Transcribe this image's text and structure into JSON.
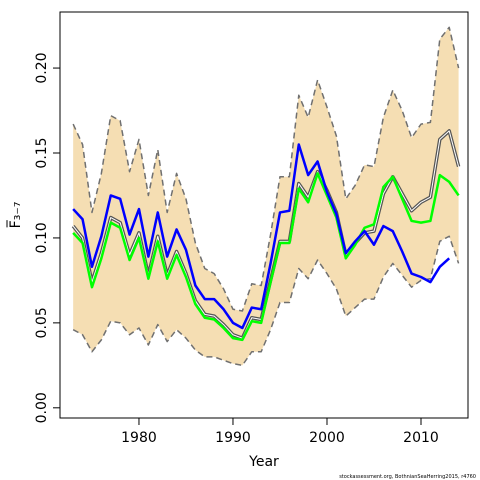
{
  "chart_data": {
    "type": "line",
    "xlabel": "Year",
    "ylabel": "F̅₃₋₇",
    "xlim": [
      1971.6,
      2015.0
    ],
    "ylim": [
      -0.006,
      0.233
    ],
    "x_ticks": [
      1980,
      1990,
      2000,
      2010
    ],
    "x_tick_labels": [
      "1980",
      "1990",
      "2000",
      "2010"
    ],
    "y_ticks": [
      0.0,
      0.05,
      0.1,
      0.15,
      0.2
    ],
    "y_tick_labels": [
      "0.00",
      "0.05",
      "0.10",
      "0.15",
      "0.20"
    ],
    "grid": false,
    "footnote": "stockassessment.org, BothnianSeaHerring2015, r4760",
    "x": [
      1973,
      1974,
      1975,
      1976,
      1977,
      1978,
      1979,
      1980,
      1981,
      1982,
      1983,
      1984,
      1985,
      1986,
      1987,
      1988,
      1989,
      1990,
      1991,
      1992,
      1993,
      1994,
      1995,
      1996,
      1997,
      1998,
      1999,
      2000,
      2001,
      2002,
      2003,
      2004,
      2005,
      2006,
      2007,
      2008,
      2009,
      2010,
      2011,
      2012,
      2013,
      2014
    ],
    "series": [
      {
        "role": "confidence-upper",
        "color": "#707070",
        "values": [
          0.167,
          0.155,
          0.115,
          0.138,
          0.172,
          0.169,
          0.139,
          0.158,
          0.125,
          0.152,
          0.115,
          0.138,
          0.123,
          0.097,
          0.082,
          0.079,
          0.07,
          0.058,
          0.057,
          0.073,
          0.072,
          0.102,
          0.136,
          0.136,
          0.184,
          0.171,
          0.193,
          0.177,
          0.16,
          0.123,
          0.131,
          0.143,
          0.142,
          0.171,
          0.187,
          0.175,
          0.159,
          0.167,
          0.168,
          0.217,
          0.224,
          0.2
        ]
      },
      {
        "role": "confidence-lower",
        "color": "#707070",
        "values": [
          0.046,
          0.043,
          0.033,
          0.04,
          0.051,
          0.05,
          0.043,
          0.047,
          0.037,
          0.049,
          0.039,
          0.046,
          0.041,
          0.034,
          0.03,
          0.03,
          0.028,
          0.026,
          0.025,
          0.033,
          0.033,
          0.046,
          0.062,
          0.062,
          0.082,
          0.076,
          0.087,
          0.079,
          0.07,
          0.054,
          0.059,
          0.064,
          0.064,
          0.077,
          0.085,
          0.078,
          0.071,
          0.075,
          0.076,
          0.098,
          0.101,
          0.085
        ]
      },
      {
        "role": "estimate",
        "color": "#555555",
        "values": [
          0.107,
          0.1,
          0.074,
          0.091,
          0.112,
          0.109,
          0.09,
          0.103,
          0.078,
          0.101,
          0.078,
          0.092,
          0.079,
          0.063,
          0.055,
          0.054,
          0.049,
          0.043,
          0.041,
          0.053,
          0.052,
          0.075,
          0.098,
          0.098,
          0.132,
          0.124,
          0.139,
          0.128,
          0.115,
          0.09,
          0.097,
          0.103,
          0.104,
          0.126,
          0.136,
          0.126,
          0.116,
          0.121,
          0.124,
          0.158,
          0.163,
          0.142
        ]
      },
      {
        "role": "comparison-green",
        "color": "#00ff00",
        "values": [
          0.103,
          0.097,
          0.071,
          0.088,
          0.109,
          0.106,
          0.087,
          0.1,
          0.076,
          0.098,
          0.076,
          0.09,
          0.077,
          0.061,
          0.053,
          0.052,
          0.047,
          0.041,
          0.04,
          0.051,
          0.05,
          0.074,
          0.097,
          0.097,
          0.129,
          0.121,
          0.138,
          0.125,
          0.112,
          0.088,
          0.096,
          0.106,
          0.108,
          0.13,
          0.136,
          0.123,
          0.11,
          0.109,
          0.11,
          0.137,
          0.133,
          0.125
        ]
      },
      {
        "role": "comparison-blue",
        "color": "#0000ff",
        "values": [
          0.117,
          0.111,
          0.083,
          0.101,
          0.125,
          0.123,
          0.102,
          0.117,
          0.089,
          0.115,
          0.089,
          0.105,
          0.093,
          0.072,
          0.064,
          0.064,
          0.058,
          0.05,
          0.047,
          0.059,
          0.058,
          0.085,
          0.115,
          0.116,
          0.155,
          0.137,
          0.145,
          0.127,
          0.114,
          0.091,
          0.098,
          0.104,
          0.096,
          0.107,
          0.104,
          0.092,
          0.079,
          0.077,
          0.074,
          0.083,
          0.088,
          null
        ]
      }
    ]
  }
}
